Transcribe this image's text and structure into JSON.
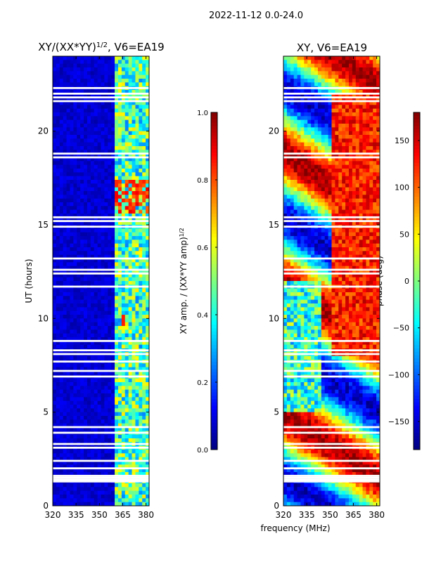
{
  "figure_title": "2022-11-12 0.0-24.0",
  "shared_xlabel": "frequency (MHz)",
  "chart_data": [
    {
      "type": "heatmap",
      "title_main": "XY/(XX*YY)",
      "title_exp": "1/2",
      "title_suffix": ", V6=EA19",
      "xlabel": "",
      "ylabel": "UT (hours)",
      "xlim": [
        320,
        382
      ],
      "ylim": [
        0,
        24
      ],
      "xticks": [
        320,
        335,
        350,
        365,
        380
      ],
      "yticks": [
        0,
        5,
        10,
        15,
        20
      ],
      "colorbar": {
        "label_main": "XY amp. / (XX*YY amp)",
        "label_exp": "1/2",
        "range": [
          0.0,
          1.0
        ],
        "ticks": [
          "0.0",
          "0.2",
          "0.4",
          "0.6",
          "0.8",
          "1.0"
        ],
        "tick_values": [
          0,
          0.2,
          0.4,
          0.6,
          0.8,
          1.0
        ],
        "colormap": "jet"
      },
      "flagged_hours": [
        1.3,
        1.4,
        1.5,
        1.6,
        2.0,
        2.4,
        3.1,
        3.3,
        3.9,
        4.2,
        6.9,
        7.2,
        7.7,
        8.1,
        8.3,
        8.8,
        11.7,
        12.4,
        12.6,
        13.2,
        14.9,
        15.2,
        15.4,
        18.6,
        18.8,
        21.6,
        21.8,
        22.0,
        22.3
      ]
    },
    {
      "type": "heatmap",
      "title": "XY, V6=EA19",
      "xlabel": "frequency (MHz)",
      "ylabel": "",
      "xlim": [
        320,
        382
      ],
      "ylim": [
        0,
        24
      ],
      "xticks": [
        320,
        335,
        350,
        365,
        380
      ],
      "yticks": [
        0,
        5,
        10,
        15,
        20
      ],
      "colorbar": {
        "label": "phase (deg)",
        "range": [
          -180,
          180
        ],
        "ticks": [
          "150",
          "100",
          "50",
          "0",
          "−50",
          "−100",
          "−150"
        ],
        "tick_values": [
          150,
          100,
          50,
          0,
          -50,
          -100,
          -150
        ],
        "colormap": "jet"
      },
      "flagged_hours": [
        1.3,
        1.4,
        1.5,
        1.6,
        2.0,
        2.4,
        3.1,
        3.3,
        3.9,
        4.2,
        6.9,
        7.2,
        7.7,
        8.1,
        8.3,
        8.8,
        11.7,
        12.4,
        12.6,
        13.2,
        14.9,
        15.2,
        15.4,
        18.6,
        18.8,
        21.6,
        21.8,
        22.0,
        22.3
      ]
    }
  ]
}
